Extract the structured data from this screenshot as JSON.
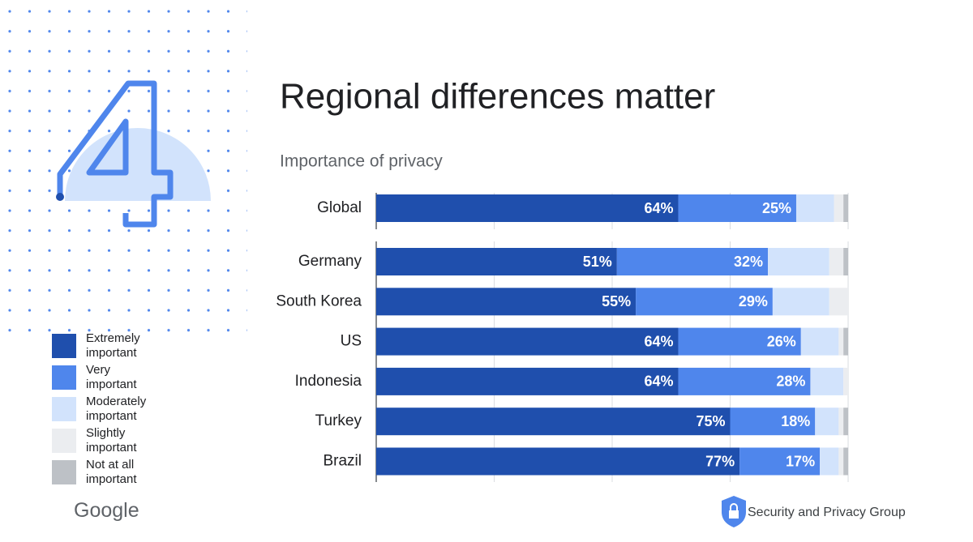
{
  "chart_data": {
    "type": "stacked-bar-horizontal",
    "title": "Regional differences matter",
    "subtitle": "Importance of privacy",
    "categories": [
      "Global",
      "Germany",
      "South Korea",
      "US",
      "Indonesia",
      "Turkey",
      "Brazil"
    ],
    "series": [
      {
        "name": "Extremely important",
        "color": "#1f4fad",
        "values": [
          64,
          51,
          55,
          64,
          64,
          75,
          77
        ],
        "value_labels": [
          "64%",
          "51%",
          "55%",
          "64%",
          "64%",
          "75%",
          "77%"
        ]
      },
      {
        "name": "Very important",
        "color": "#4f86ec",
        "values": [
          25,
          32,
          29,
          26,
          28,
          18,
          17
        ],
        "value_labels": [
          "25%",
          "32%",
          "29%",
          "26%",
          "28%",
          "18%",
          "17%"
        ]
      },
      {
        "name": "Moderately important",
        "color": "#d2e3fc",
        "values": [
          8,
          13,
          12,
          8,
          7,
          5,
          4
        ]
      },
      {
        "name": "Slightly important",
        "color": "#ebedf0",
        "values": [
          2,
          3,
          4,
          1,
          1,
          1,
          1
        ]
      },
      {
        "name": "Not at all important",
        "color": "#bdc1c6",
        "values": [
          1,
          1,
          0,
          1,
          0,
          1,
          1
        ]
      }
    ],
    "xlim": [
      0,
      100
    ],
    "xticks": [
      0,
      25,
      50,
      75,
      100
    ],
    "grid": true
  },
  "footer": {
    "brand": "Google",
    "group": "Security and Privacy Group"
  }
}
